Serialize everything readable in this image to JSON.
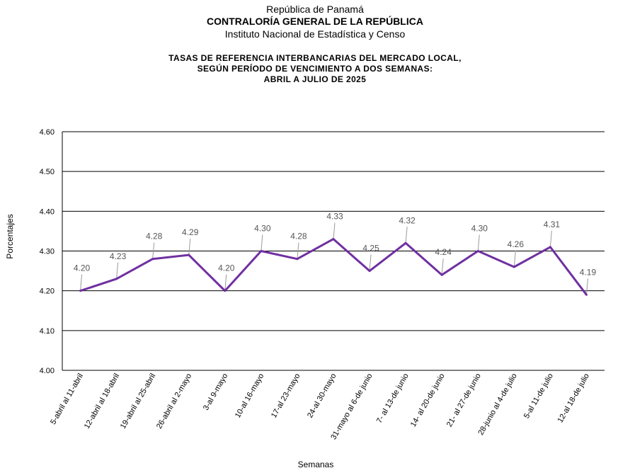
{
  "header": {
    "line1": "República de Panamá",
    "line2": "CONTRALORÍA GENERAL DE LA REPÚBLICA",
    "line3": "Instituto Nacional de Estadística y Censo"
  },
  "chart_data": {
    "type": "line",
    "title": [
      "TASAS DE REFERENCIA INTERBANCARIAS DEL MERCADO LOCAL,",
      "SEGÚN PERÍODO DE VENCIMIENTO A DOS SEMANAS:",
      "ABRIL A JULIO DE 2025"
    ],
    "xlabel": "Semanas",
    "ylabel": "Porcentajes",
    "ylim": [
      4.0,
      4.6
    ],
    "yticks": [
      "4.00",
      "4.10",
      "4.20",
      "4.30",
      "4.40",
      "4.50",
      "4.60"
    ],
    "categories": [
      "5-abril al 11-abril",
      "12-abril al 18-abril",
      "19-abril al 25-abril",
      "26-abril al 2-mayo",
      "3-al 9-mayo",
      "10-al 16-mayo",
      "17-al 23-mayo",
      "24-al 30-mayo",
      "31-mayo al 6-de junio",
      "7- al 13-de junio",
      "14- al 20-de junio",
      "21- al 27-de junio",
      "28-junio al 4-de julio",
      "5-al 11-de julio",
      "12-al 18-de julio"
    ],
    "series": [
      {
        "values": [
          4.2,
          4.23,
          4.28,
          4.29,
          4.2,
          4.3,
          4.28,
          4.33,
          4.25,
          4.32,
          4.24,
          4.3,
          4.26,
          4.31,
          4.19
        ]
      }
    ],
    "data_labels": [
      "4.20",
      "4.23",
      "4.28",
      "4.29",
      "4.20",
      "4.30",
      "4.28",
      "4.33",
      "4.25",
      "4.32",
      "4.24",
      "4.30",
      "4.26",
      "4.31",
      "4.19"
    ],
    "line_color": "#7030a0",
    "grid": true,
    "legend": "none"
  }
}
